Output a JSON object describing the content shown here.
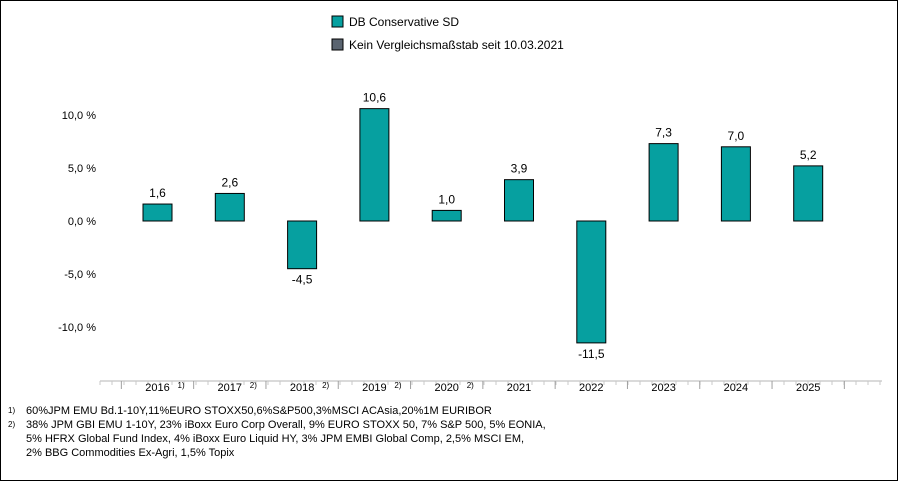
{
  "chart_data": {
    "type": "bar",
    "categories": [
      "2016",
      "2017",
      "2018",
      "2019",
      "2020",
      "2021",
      "2022",
      "2023",
      "2024",
      "2025"
    ],
    "category_notes": [
      "1)",
      "2)",
      "2)",
      "2)",
      "2)",
      "",
      "",
      "",
      "",
      ""
    ],
    "series": [
      {
        "name": "DB Conservative SD",
        "color": "#06a0a0",
        "values": [
          1.6,
          2.6,
          -4.5,
          10.6,
          1.0,
          3.9,
          -11.5,
          7.3,
          7.0,
          5.2
        ],
        "labels": [
          "1,6",
          "2,6",
          "-4,5",
          "10,6",
          "1,0",
          "3,9",
          "-11,5",
          "7,3",
          "7,0",
          "5,2"
        ]
      }
    ],
    "legend": [
      {
        "label": "DB Conservative SD",
        "color": "#06a0a0"
      },
      {
        "label": "Kein Vergleichsmaßstab seit 10.03.2021",
        "color": "#5a6470"
      }
    ],
    "legend_position": "top-center",
    "yticks": [
      10,
      5,
      0,
      -5,
      -10
    ],
    "ytick_labels": [
      "10,0 %",
      "5,0 %",
      "0,0 %",
      "-5,0 %",
      "-10,0 %"
    ],
    "ylim": [
      -15,
      15
    ],
    "grid": false
  },
  "footnotes": [
    {
      "mark": "1)",
      "lines": [
        "60%JPM EMU Bd.1-10Y,11%EURO STOXX50,6%S&P500,3%MSCI ACAsia,20%1M EURIBOR"
      ]
    },
    {
      "mark": "2)",
      "lines": [
        "38% JPM GBI EMU 1-10Y, 23% iBoxx Euro Corp Overall, 9% EURO STOXX 50, 7% S&P 500, 5% EONIA,",
        "5% HFRX Global Fund Index, 4% iBoxx Euro Liquid HY, 3% JPM EMBI Global Comp, 2,5% MSCI EM,",
        "2% BBG Commodities Ex-Agri, 1,5% Topix"
      ]
    }
  ]
}
